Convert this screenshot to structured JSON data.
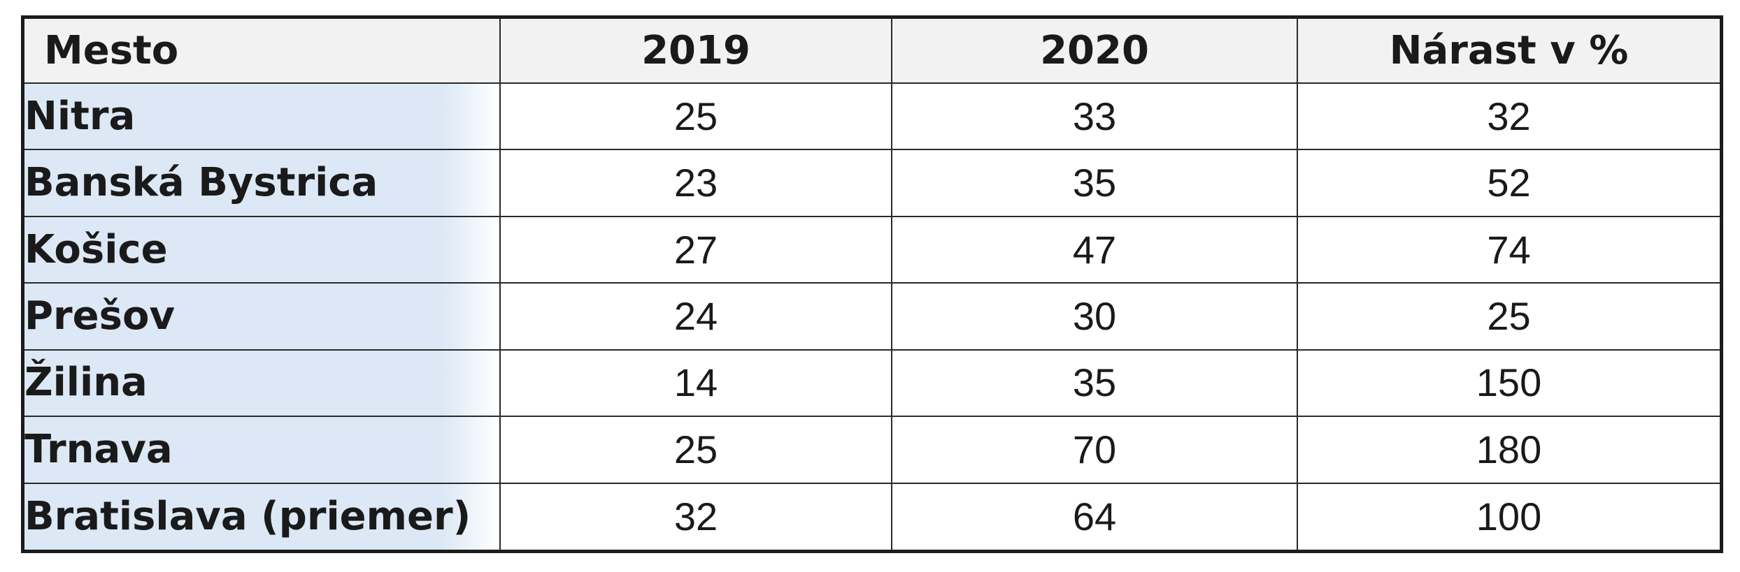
{
  "table": {
    "headers": [
      "Mesto",
      "2019",
      "2020",
      "Nárast v %"
    ],
    "rows": [
      {
        "city": "Nitra",
        "y2019": "25",
        "y2020": "33",
        "increase": "32"
      },
      {
        "city": "Banská Bystrica",
        "y2019": "23",
        "y2020": "35",
        "increase": "52"
      },
      {
        "city": "Košice",
        "y2019": "27",
        "y2020": "47",
        "increase": "74"
      },
      {
        "city": "Prešov",
        "y2019": "24",
        "y2020": "30",
        "increase": "25"
      },
      {
        "city": "Žilina",
        "y2019": "14",
        "y2020": "35",
        "increase": "150"
      },
      {
        "city": "Trnava",
        "y2019": "25",
        "y2020": "70",
        "increase": "180"
      },
      {
        "city": "Bratislava (priemer)",
        "y2019": "32",
        "y2020": "64",
        "increase": "100"
      }
    ]
  },
  "colors": {
    "header_bg": "#f2f2f2",
    "city_bg": "#dce8f5",
    "border": "#1c1c1c"
  }
}
